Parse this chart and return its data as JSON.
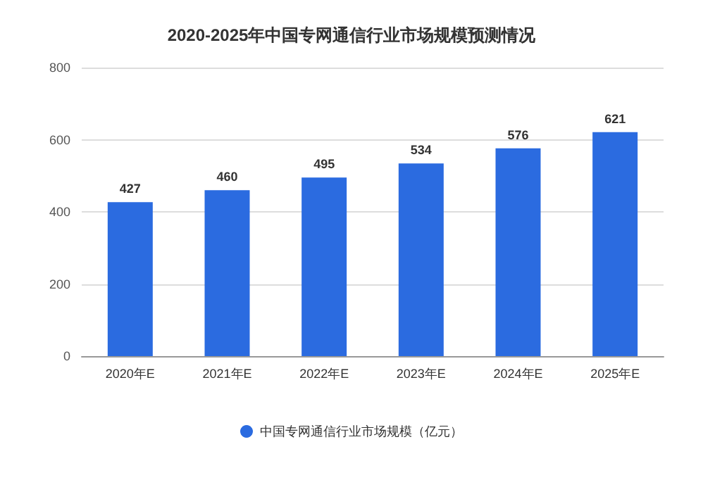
{
  "chart_data": {
    "type": "bar",
    "title": "2020-2025年中国专网通信行业市场规模预测情况",
    "categories": [
      "2020年E",
      "2021年E",
      "2022年E",
      "2023年E",
      "2024年E",
      "2025年E"
    ],
    "series": [
      {
        "name": "中国专网通信行业市场规模（亿元）",
        "color": "#2b6be0",
        "values": [
          427,
          460,
          495,
          534,
          576,
          621
        ]
      }
    ],
    "ylim": [
      0,
      800
    ],
    "yticks": [
      0,
      200,
      400,
      600,
      800
    ],
    "grid": "y",
    "legend": "bottom",
    "data_labels": true
  }
}
